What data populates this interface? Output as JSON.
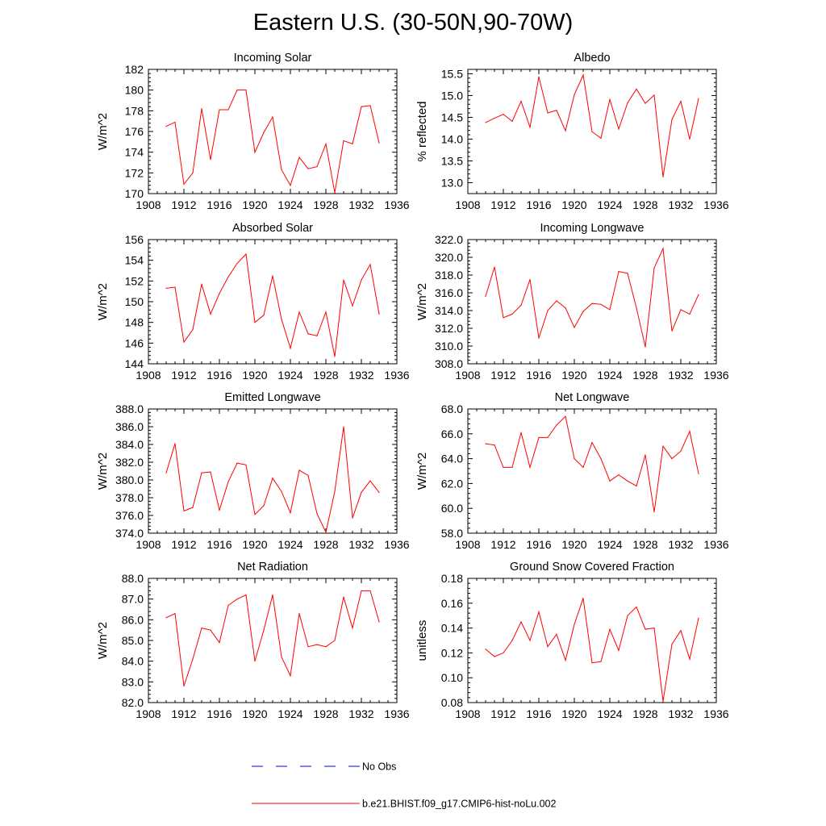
{
  "title": "Eastern U.S. (30-50N,90-70W)",
  "colors": {
    "model": "#ff0000",
    "obs": "#0000ff",
    "frame": "#000000"
  },
  "legend": {
    "items": [
      {
        "label": "No Obs",
        "style": "dashed",
        "color": "#0000ff"
      },
      {
        "label": "b.e21.BHIST.f09_g17.CMIP6-hist-noLu.002",
        "style": "solid",
        "color": "#ff0000"
      }
    ]
  },
  "chart_data": [
    {
      "type": "line",
      "title": "Incoming Solar",
      "ylabel": "W/m^2",
      "xlim": [
        1908,
        1936
      ],
      "xticks": [
        "1908",
        "1912",
        "1916",
        "1920",
        "1924",
        "1928",
        "1932",
        "1936"
      ],
      "ylim": [
        170,
        182
      ],
      "yticks": [
        "170",
        "172",
        "174",
        "176",
        "178",
        "180",
        "182"
      ],
      "x": [
        1910,
        1911,
        1912,
        1913,
        1914,
        1915,
        1916,
        1917,
        1918,
        1919,
        1920,
        1921,
        1922,
        1923,
        1924,
        1925,
        1926,
        1927,
        1928,
        1929,
        1930,
        1931,
        1932,
        1933,
        1934
      ],
      "series": [
        {
          "name": "b.e21.BHIST.f09_g17.CMIP6-hist-noLu.002",
          "values": [
            176.5,
            176.9,
            170.9,
            172.0,
            178.2,
            173.3,
            178.1,
            178.1,
            180.0,
            180.0,
            174.0,
            175.9,
            177.4,
            172.3,
            170.8,
            173.5,
            172.4,
            172.6,
            174.8,
            170.1,
            175.1,
            174.8,
            178.4,
            178.5,
            174.9
          ]
        }
      ]
    },
    {
      "type": "line",
      "title": "Albedo",
      "ylabel": "% reflected",
      "xlim": [
        1908,
        1936
      ],
      "xticks": [
        "1908",
        "1912",
        "1916",
        "1920",
        "1924",
        "1928",
        "1932",
        "1936"
      ],
      "ylim": [
        12.75,
        15.6
      ],
      "yticks": [
        "13.0",
        "13.5",
        "14.0",
        "14.5",
        "15.0",
        "15.5"
      ],
      "ytickvals": [
        13.0,
        13.5,
        14.0,
        14.5,
        15.0,
        15.5
      ],
      "x": [
        1910,
        1911,
        1912,
        1913,
        1914,
        1915,
        1916,
        1917,
        1918,
        1919,
        1920,
        1921,
        1922,
        1923,
        1924,
        1925,
        1926,
        1927,
        1928,
        1929,
        1930,
        1931,
        1932,
        1933,
        1934
      ],
      "series": [
        {
          "name": "b.e21.BHIST.f09_g17.CMIP6-hist-noLu.002",
          "values": [
            14.38,
            14.48,
            14.57,
            14.41,
            14.87,
            14.27,
            15.43,
            14.6,
            14.66,
            14.19,
            15.02,
            15.47,
            14.17,
            14.02,
            14.91,
            14.23,
            14.83,
            15.15,
            14.82,
            15.01,
            13.13,
            14.45,
            14.87,
            14.0,
            14.93
          ]
        }
      ]
    },
    {
      "type": "line",
      "title": "Absorbed Solar",
      "ylabel": "W/m^2",
      "xlim": [
        1908,
        1936
      ],
      "xticks": [
        "1908",
        "1912",
        "1916",
        "1920",
        "1924",
        "1928",
        "1932",
        "1936"
      ],
      "ylim": [
        144,
        156
      ],
      "yticks": [
        "144",
        "146",
        "148",
        "150",
        "152",
        "154",
        "156"
      ],
      "x": [
        1910,
        1911,
        1912,
        1913,
        1914,
        1915,
        1916,
        1917,
        1918,
        1919,
        1920,
        1921,
        1922,
        1923,
        1924,
        1925,
        1926,
        1927,
        1928,
        1929,
        1930,
        1931,
        1932,
        1933,
        1934
      ],
      "series": [
        {
          "name": "b.e21.BHIST.f09_g17.CMIP6-hist-noLu.002",
          "values": [
            151.3,
            151.4,
            146.1,
            147.3,
            151.7,
            148.8,
            150.8,
            152.4,
            153.7,
            154.6,
            148.0,
            148.7,
            152.5,
            148.3,
            145.5,
            149.0,
            146.9,
            146.7,
            149.0,
            144.7,
            152.1,
            149.6,
            152.1,
            153.6,
            148.8
          ]
        }
      ]
    },
    {
      "type": "line",
      "title": "Incoming Longwave",
      "ylabel": "W/m^2",
      "xlim": [
        1908,
        1936
      ],
      "xticks": [
        "1908",
        "1912",
        "1916",
        "1920",
        "1924",
        "1928",
        "1932",
        "1936"
      ],
      "ylim": [
        308,
        322
      ],
      "yticks": [
        "308.0",
        "310.0",
        "312.0",
        "314.0",
        "316.0",
        "318.0",
        "320.0",
        "322.0"
      ],
      "ytickvals": [
        308,
        310,
        312,
        314,
        316,
        318,
        320,
        322
      ],
      "x": [
        1910,
        1911,
        1912,
        1913,
        1914,
        1915,
        1916,
        1917,
        1918,
        1919,
        1920,
        1921,
        1922,
        1923,
        1924,
        1925,
        1926,
        1927,
        1928,
        1929,
        1930,
        1931,
        1932,
        1933,
        1934
      ],
      "series": [
        {
          "name": "b.e21.BHIST.f09_g17.CMIP6-hist-noLu.002",
          "values": [
            315.6,
            318.9,
            313.2,
            313.6,
            314.6,
            317.5,
            310.9,
            314.0,
            315.1,
            314.3,
            312.1,
            313.9,
            314.8,
            314.7,
            314.1,
            318.4,
            318.2,
            314.3,
            309.9,
            318.8,
            321.0,
            311.7,
            314.1,
            313.6,
            315.8
          ]
        }
      ]
    },
    {
      "type": "line",
      "title": "Emitted Longwave",
      "ylabel": "W/m^2",
      "xlim": [
        1908,
        1936
      ],
      "xticks": [
        "1908",
        "1912",
        "1916",
        "1920",
        "1924",
        "1928",
        "1932",
        "1936"
      ],
      "ylim": [
        374,
        388
      ],
      "yticks": [
        "374.0",
        "376.0",
        "378.0",
        "380.0",
        "382.0",
        "384.0",
        "386.0",
        "388.0"
      ],
      "ytickvals": [
        374,
        376,
        378,
        380,
        382,
        384,
        386,
        388
      ],
      "x": [
        1910,
        1911,
        1912,
        1913,
        1914,
        1915,
        1916,
        1917,
        1918,
        1919,
        1920,
        1921,
        1922,
        1923,
        1924,
        1925,
        1926,
        1927,
        1928,
        1929,
        1930,
        1931,
        1932,
        1933,
        1934
      ],
      "series": [
        {
          "name": "b.e21.BHIST.f09_g17.CMIP6-hist-noLu.002",
          "values": [
            380.8,
            384.1,
            376.5,
            376.9,
            380.8,
            380.9,
            376.6,
            379.8,
            381.9,
            381.7,
            376.1,
            377.1,
            380.2,
            378.7,
            376.3,
            381.1,
            380.5,
            376.2,
            374.1,
            378.7,
            386.0,
            375.7,
            378.6,
            379.9,
            378.6
          ]
        }
      ]
    },
    {
      "type": "line",
      "title": "Net Longwave",
      "ylabel": "W/m^2",
      "xlim": [
        1908,
        1936
      ],
      "xticks": [
        "1908",
        "1912",
        "1916",
        "1920",
        "1924",
        "1928",
        "1932",
        "1936"
      ],
      "ylim": [
        58,
        68
      ],
      "yticks": [
        "58.0",
        "60.0",
        "62.0",
        "64.0",
        "66.0",
        "68.0"
      ],
      "ytickvals": [
        58,
        60,
        62,
        64,
        66,
        68
      ],
      "x": [
        1910,
        1911,
        1912,
        1913,
        1914,
        1915,
        1916,
        1917,
        1918,
        1919,
        1920,
        1921,
        1922,
        1923,
        1924,
        1925,
        1926,
        1927,
        1928,
        1929,
        1930,
        1931,
        1932,
        1933,
        1934
      ],
      "series": [
        {
          "name": "b.e21.BHIST.f09_g17.CMIP6-hist-noLu.002",
          "values": [
            65.2,
            65.1,
            63.3,
            63.3,
            66.1,
            63.3,
            65.7,
            65.7,
            66.7,
            67.4,
            64.0,
            63.3,
            65.3,
            64.0,
            62.2,
            62.7,
            62.2,
            61.8,
            64.3,
            59.7,
            65.0,
            64.0,
            64.6,
            66.2,
            62.8
          ]
        }
      ]
    },
    {
      "type": "line",
      "title": "Net Radiation",
      "ylabel": "W/m^2",
      "xlim": [
        1908,
        1936
      ],
      "xticks": [
        "1908",
        "1912",
        "1916",
        "1920",
        "1924",
        "1928",
        "1932",
        "1936"
      ],
      "ylim": [
        82,
        88
      ],
      "yticks": [
        "82.0",
        "83.0",
        "84.0",
        "85.0",
        "86.0",
        "87.0",
        "88.0"
      ],
      "ytickvals": [
        82,
        83,
        84,
        85,
        86,
        87,
        88
      ],
      "x": [
        1910,
        1911,
        1912,
        1913,
        1914,
        1915,
        1916,
        1917,
        1918,
        1919,
        1920,
        1921,
        1922,
        1923,
        1924,
        1925,
        1926,
        1927,
        1928,
        1929,
        1930,
        1931,
        1932,
        1933,
        1934
      ],
      "series": [
        {
          "name": "b.e21.BHIST.f09_g17.CMIP6-hist-noLu.002",
          "values": [
            86.1,
            86.3,
            82.8,
            84.1,
            85.6,
            85.5,
            84.9,
            86.7,
            87.0,
            87.2,
            84.0,
            85.5,
            87.2,
            84.2,
            83.3,
            86.3,
            84.7,
            84.8,
            84.7,
            85.0,
            87.1,
            85.6,
            87.4,
            87.4,
            85.9
          ]
        }
      ]
    },
    {
      "type": "line",
      "title": "Ground Snow Covered Fraction",
      "ylabel": "unitless",
      "xlim": [
        1908,
        1936
      ],
      "xticks": [
        "1908",
        "1912",
        "1916",
        "1920",
        "1924",
        "1928",
        "1932",
        "1936"
      ],
      "ylim": [
        0.08,
        0.18
      ],
      "yticks": [
        "0.08",
        "0.10",
        "0.12",
        "0.14",
        "0.16",
        "0.18"
      ],
      "ytickvals": [
        0.08,
        0.1,
        0.12,
        0.14,
        0.16,
        0.18
      ],
      "x": [
        1910,
        1911,
        1912,
        1913,
        1914,
        1915,
        1916,
        1917,
        1918,
        1919,
        1920,
        1921,
        1922,
        1923,
        1924,
        1925,
        1926,
        1927,
        1928,
        1929,
        1930,
        1931,
        1932,
        1933,
        1934
      ],
      "series": [
        {
          "name": "b.e21.BHIST.f09_g17.CMIP6-hist-noLu.002",
          "values": [
            0.123,
            0.117,
            0.12,
            0.13,
            0.145,
            0.13,
            0.153,
            0.125,
            0.135,
            0.114,
            0.143,
            0.164,
            0.112,
            0.113,
            0.139,
            0.122,
            0.15,
            0.157,
            0.139,
            0.14,
            0.081,
            0.127,
            0.138,
            0.115,
            0.148
          ]
        }
      ]
    }
  ]
}
